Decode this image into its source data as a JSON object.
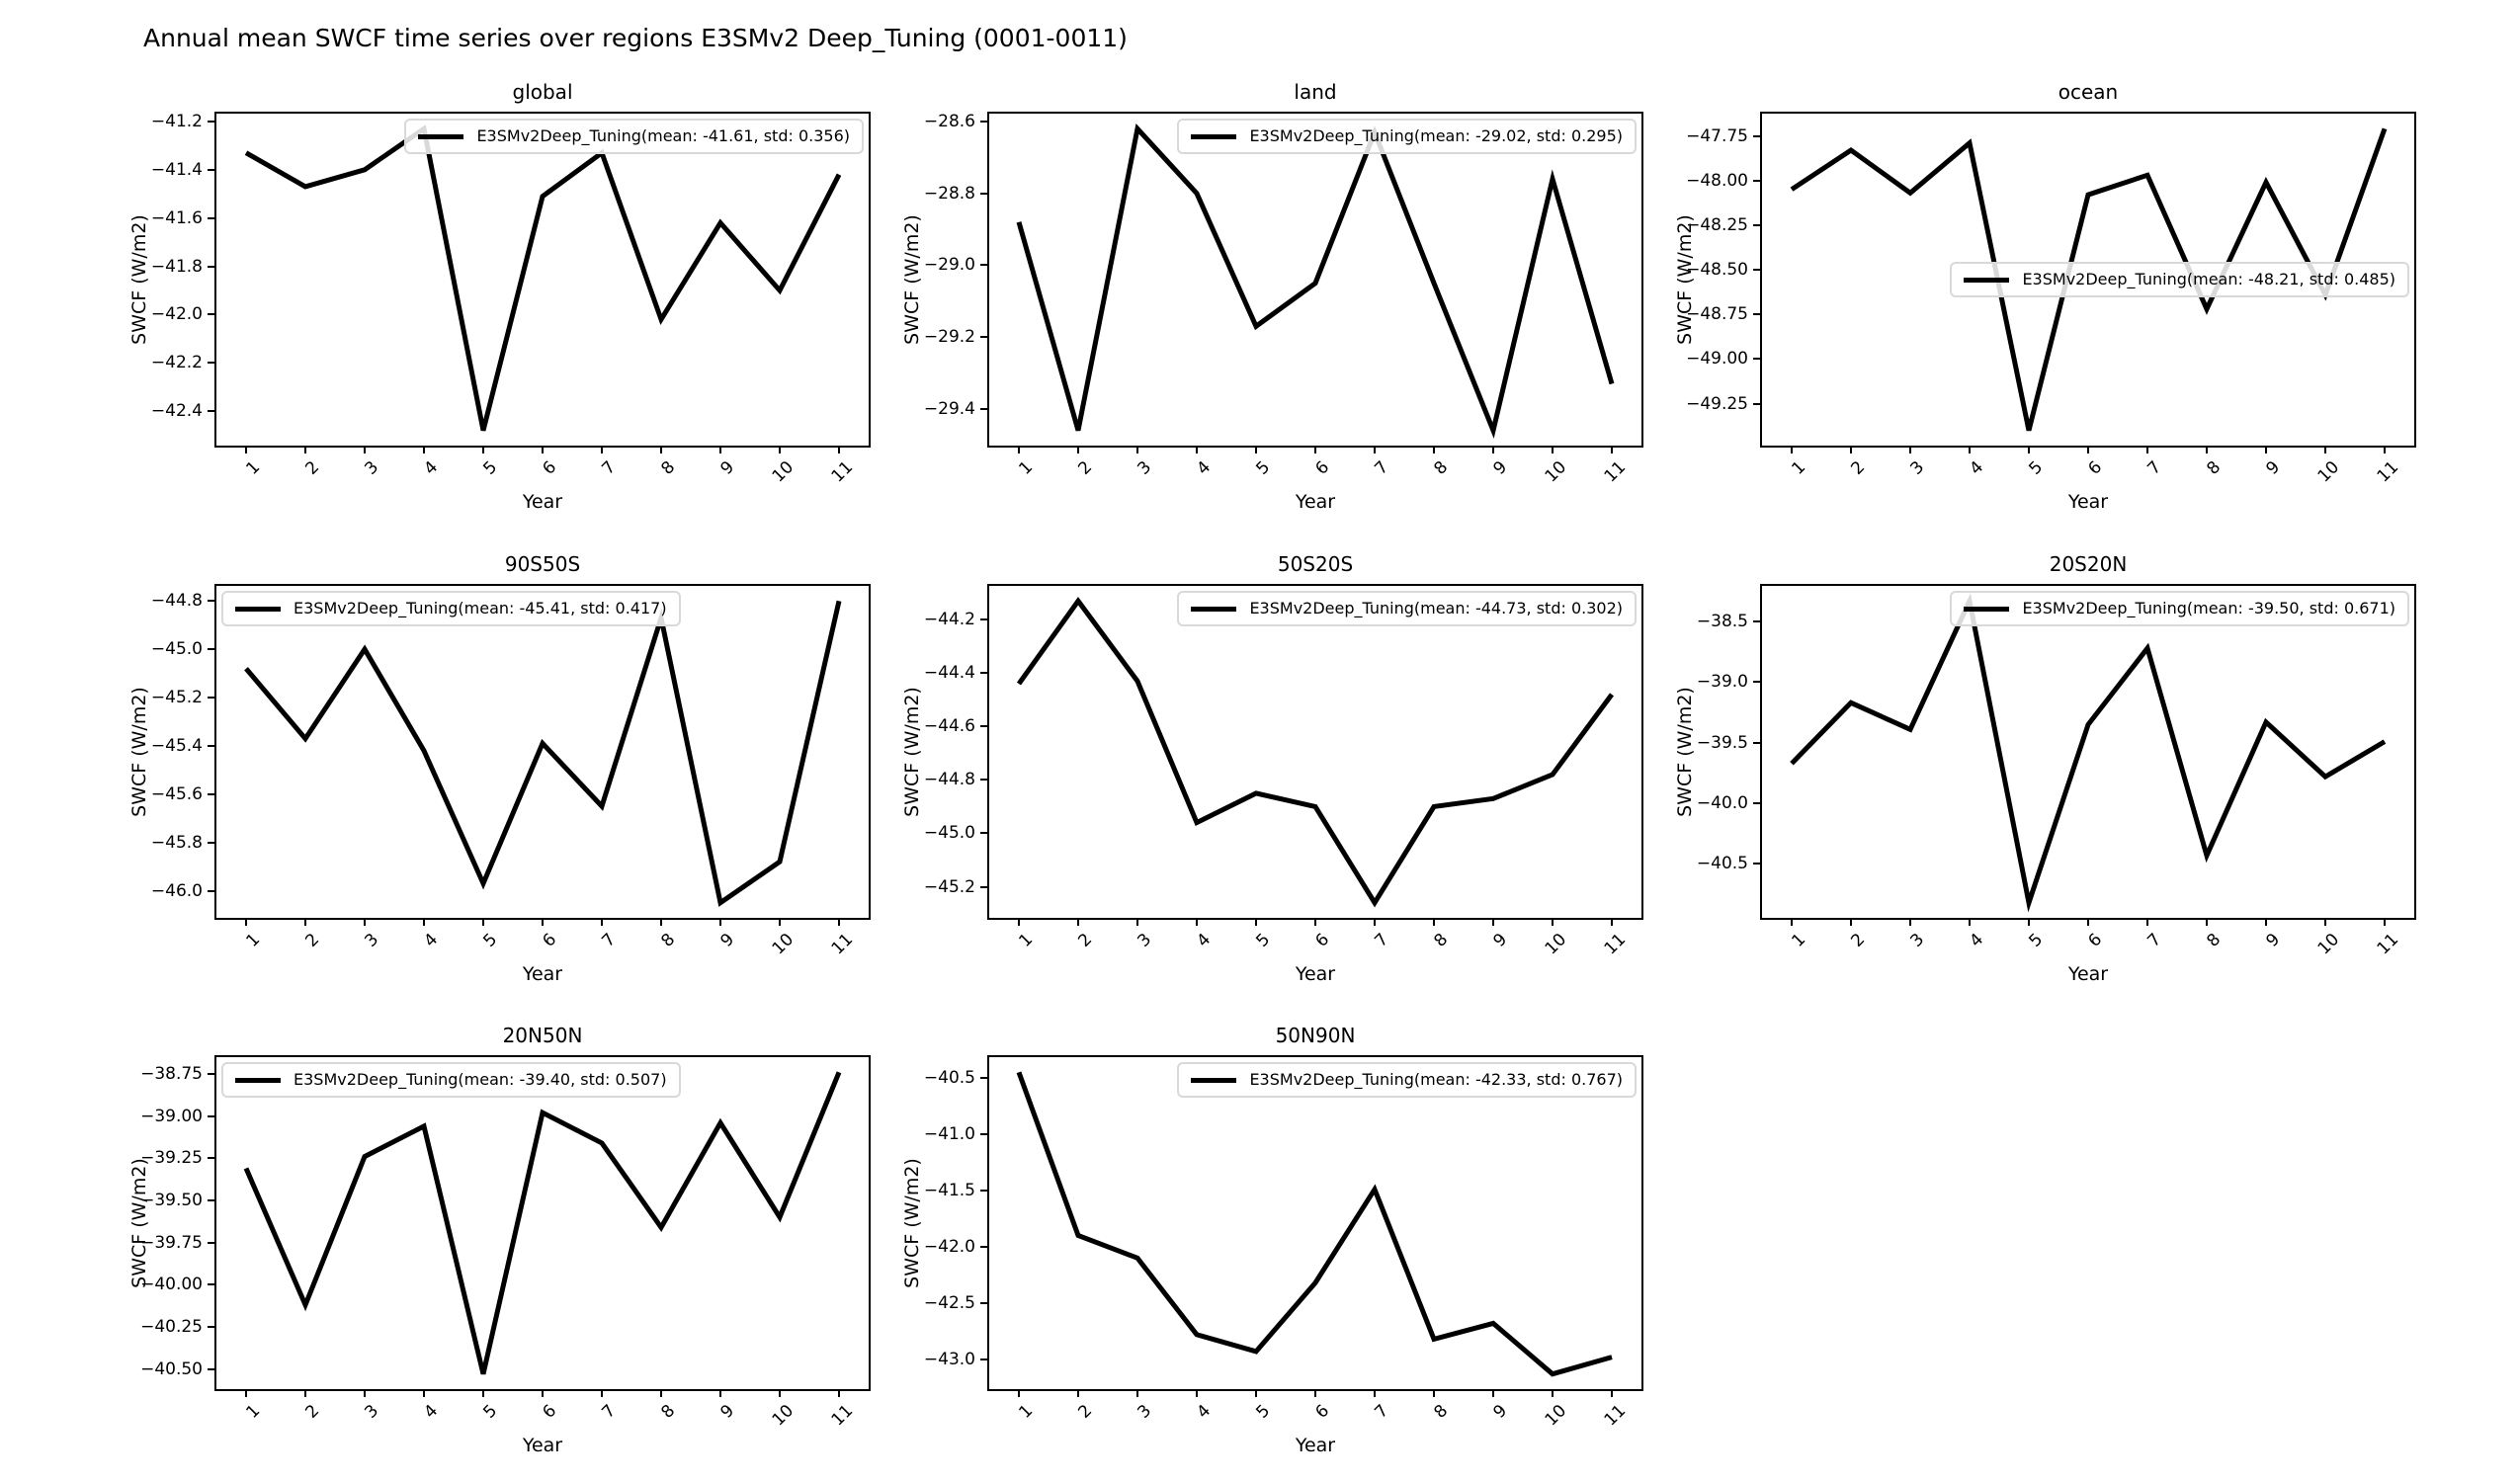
{
  "figure": {
    "title": "Annual mean SWCF time series over regions E3SMv2 Deep_Tuning (0001-0011)",
    "background_color": "#ffffff",
    "line_color": "#000000",
    "legend_border_color": "#d9d9d9"
  },
  "chart_data": [
    {
      "type": "line",
      "title": "global",
      "xlabel": "Year",
      "ylabel": "SWCF (W/m2)",
      "legend": "E3SMv2Deep_Tuning(mean: -41.61, std: 0.356)",
      "legend_pos": "top-right",
      "mean": -41.61,
      "std": 0.356,
      "x": [
        1,
        2,
        3,
        4,
        5,
        6,
        7,
        8,
        9,
        10,
        11
      ],
      "xtick_labels": [
        "1",
        "2",
        "3",
        "4",
        "5",
        "6",
        "7",
        "8",
        "9",
        "10",
        "11"
      ],
      "values": [
        -41.33,
        -41.47,
        -41.4,
        -41.23,
        -42.48,
        -41.51,
        -41.33,
        -42.02,
        -41.62,
        -41.9,
        -41.42
      ],
      "xlim": [
        0.5,
        11.5
      ],
      "ylim": [
        -42.5425,
        -41.1675
      ],
      "yticks": [
        -41.2,
        -41.4,
        -41.6,
        -41.8,
        -42.0,
        -42.2,
        -42.4
      ],
      "ytick_labels": [
        "−41.2",
        "−41.4",
        "−41.6",
        "−41.8",
        "−42.0",
        "−42.2",
        "−42.4"
      ],
      "grid": {
        "row": 0,
        "col": 0
      }
    },
    {
      "type": "line",
      "title": "land",
      "xlabel": "Year",
      "ylabel": "SWCF (W/m2)",
      "legend": "E3SMv2Deep_Tuning(mean: -29.02, std: 0.295)",
      "legend_pos": "top-right",
      "mean": -29.02,
      "std": 0.295,
      "x": [
        1,
        2,
        3,
        4,
        5,
        6,
        7,
        8,
        9,
        10,
        11
      ],
      "xtick_labels": [
        "1",
        "2",
        "3",
        "4",
        "5",
        "6",
        "7",
        "8",
        "9",
        "10",
        "11"
      ],
      "values": [
        -28.88,
        -29.46,
        -28.62,
        -28.8,
        -29.17,
        -29.05,
        -28.63,
        -29.05,
        -29.46,
        -28.76,
        -29.33
      ],
      "xlim": [
        0.5,
        11.5
      ],
      "ylim": [
        -29.502,
        -28.578
      ],
      "yticks": [
        -28.6,
        -28.8,
        -29.0,
        -29.2,
        -29.4
      ],
      "ytick_labels": [
        "−28.6",
        "−28.8",
        "−29.0",
        "−29.2",
        "−29.4"
      ],
      "grid": {
        "row": 0,
        "col": 1
      }
    },
    {
      "type": "line",
      "title": "ocean",
      "xlabel": "Year",
      "ylabel": "SWCF (W/m2)",
      "legend": "E3SMv2Deep_Tuning(mean: -48.21, std: 0.485)",
      "legend_pos": "center-right",
      "mean": -48.21,
      "std": 0.485,
      "x": [
        1,
        2,
        3,
        4,
        5,
        6,
        7,
        8,
        9,
        10,
        11
      ],
      "xtick_labels": [
        "1",
        "2",
        "3",
        "4",
        "5",
        "6",
        "7",
        "8",
        "9",
        "10",
        "11"
      ],
      "values": [
        -48.05,
        -47.83,
        -48.07,
        -47.79,
        -49.4,
        -48.08,
        -47.97,
        -48.72,
        -48.01,
        -48.64,
        -47.71
      ],
      "xlim": [
        0.5,
        11.5
      ],
      "ylim": [
        -49.4845,
        -47.6255
      ],
      "yticks": [
        -47.75,
        -48.0,
        -48.25,
        -48.5,
        -48.75,
        -49.0,
        -49.25
      ],
      "ytick_labels": [
        "−47.75",
        "−48.00",
        "−48.25",
        "−48.50",
        "−48.75",
        "−49.00",
        "−49.25"
      ],
      "grid": {
        "row": 0,
        "col": 2
      }
    },
    {
      "type": "line",
      "title": "90S50S",
      "xlabel": "Year",
      "ylabel": "SWCF (W/m2)",
      "legend": "E3SMv2Deep_Tuning(mean: -45.41, std: 0.417)",
      "legend_pos": "top-left",
      "mean": -45.41,
      "std": 0.417,
      "x": [
        1,
        2,
        3,
        4,
        5,
        6,
        7,
        8,
        9,
        10,
        11
      ],
      "xtick_labels": [
        "1",
        "2",
        "3",
        "4",
        "5",
        "6",
        "7",
        "8",
        "9",
        "10",
        "11"
      ],
      "values": [
        -45.08,
        -45.37,
        -45.0,
        -45.42,
        -45.97,
        -45.39,
        -45.65,
        -44.87,
        -46.05,
        -45.88,
        -44.8
      ],
      "xlim": [
        0.5,
        11.5
      ],
      "ylim": [
        -46.1125,
        -44.7375
      ],
      "yticks": [
        -44.8,
        -45.0,
        -45.2,
        -45.4,
        -45.6,
        -45.8,
        -46.0
      ],
      "ytick_labels": [
        "−44.8",
        "−45.0",
        "−45.2",
        "−45.4",
        "−45.6",
        "−45.8",
        "−46.0"
      ],
      "grid": {
        "row": 1,
        "col": 0
      }
    },
    {
      "type": "line",
      "title": "50S20S",
      "xlabel": "Year",
      "ylabel": "SWCF (W/m2)",
      "legend": "E3SMv2Deep_Tuning(mean: -44.73, std: 0.302)",
      "legend_pos": "top-right",
      "mean": -44.73,
      "std": 0.302,
      "x": [
        1,
        2,
        3,
        4,
        5,
        6,
        7,
        8,
        9,
        10,
        11
      ],
      "xtick_labels": [
        "1",
        "2",
        "3",
        "4",
        "5",
        "6",
        "7",
        "8",
        "9",
        "10",
        "11"
      ],
      "values": [
        -44.44,
        -44.13,
        -44.43,
        -44.96,
        -44.85,
        -44.9,
        -45.26,
        -44.9,
        -44.87,
        -44.78,
        -44.48
      ],
      "xlim": [
        0.5,
        11.5
      ],
      "ylim": [
        -45.3165,
        -44.0735
      ],
      "yticks": [
        -44.2,
        -44.4,
        -44.6,
        -44.8,
        -45.0,
        -45.2
      ],
      "ytick_labels": [
        "−44.2",
        "−44.4",
        "−44.6",
        "−44.8",
        "−45.0",
        "−45.2"
      ],
      "grid": {
        "row": 1,
        "col": 1
      }
    },
    {
      "type": "line",
      "title": "20S20N",
      "xlabel": "Year",
      "ylabel": "SWCF (W/m2)",
      "legend": "E3SMv2Deep_Tuning(mean: -39.50, std: 0.671)",
      "legend_pos": "top-right",
      "mean": -39.5,
      "std": 0.671,
      "x": [
        1,
        2,
        3,
        4,
        5,
        6,
        7,
        8,
        9,
        10,
        11
      ],
      "xtick_labels": [
        "1",
        "2",
        "3",
        "4",
        "5",
        "6",
        "7",
        "8",
        "9",
        "10",
        "11"
      ],
      "values": [
        -39.67,
        -39.17,
        -39.39,
        -38.33,
        -40.82,
        -39.35,
        -38.72,
        -40.43,
        -39.33,
        -39.78,
        -39.49
      ],
      "xlim": [
        0.5,
        11.5
      ],
      "ylim": [
        -40.9445,
        -38.2055
      ],
      "yticks": [
        -38.5,
        -39.0,
        -39.5,
        -40.0,
        -40.5
      ],
      "ytick_labels": [
        "−38.5",
        "−39.0",
        "−39.5",
        "−40.0",
        "−40.5"
      ],
      "grid": {
        "row": 1,
        "col": 2
      }
    },
    {
      "type": "line",
      "title": "20N50N",
      "xlabel": "Year",
      "ylabel": "SWCF (W/m2)",
      "legend": "E3SMv2Deep_Tuning(mean: -39.40, std: 0.507)",
      "legend_pos": "top-left",
      "mean": -39.4,
      "std": 0.507,
      "x": [
        1,
        2,
        3,
        4,
        5,
        6,
        7,
        8,
        9,
        10,
        11
      ],
      "xtick_labels": [
        "1",
        "2",
        "3",
        "4",
        "5",
        "6",
        "7",
        "8",
        "9",
        "10",
        "11"
      ],
      "values": [
        -39.31,
        -40.12,
        -39.24,
        -39.06,
        -40.53,
        -38.98,
        -39.16,
        -39.66,
        -39.04,
        -39.6,
        -38.74
      ],
      "xlim": [
        0.5,
        11.5
      ],
      "ylim": [
        -40.6195,
        -38.6505
      ],
      "yticks": [
        -38.75,
        -39.0,
        -39.25,
        -39.5,
        -39.75,
        -40.0,
        -40.25,
        -40.5
      ],
      "ytick_labels": [
        "−38.75",
        "−39.00",
        "−39.25",
        "−39.50",
        "−39.75",
        "−40.00",
        "−40.25",
        "−40.50"
      ],
      "grid": {
        "row": 2,
        "col": 0
      }
    },
    {
      "type": "line",
      "title": "50N90N",
      "xlabel": "Year",
      "ylabel": "SWCF (W/m2)",
      "legend": "E3SMv2Deep_Tuning(mean: -42.33, std: 0.767)",
      "legend_pos": "top-right",
      "mean": -42.33,
      "std": 0.767,
      "x": [
        1,
        2,
        3,
        4,
        5,
        6,
        7,
        8,
        9,
        10,
        11
      ],
      "xtick_labels": [
        "1",
        "2",
        "3",
        "4",
        "5",
        "6",
        "7",
        "8",
        "9",
        "10",
        "11"
      ],
      "values": [
        -40.45,
        -41.9,
        -42.1,
        -42.78,
        -42.93,
        -42.32,
        -41.49,
        -42.82,
        -42.68,
        -43.13,
        -42.98
      ],
      "xlim": [
        0.5,
        11.5
      ],
      "ylim": [
        -43.264,
        -40.316
      ],
      "yticks": [
        -40.5,
        -41.0,
        -41.5,
        -42.0,
        -42.5,
        -43.0
      ],
      "ytick_labels": [
        "−40.5",
        "−41.0",
        "−41.5",
        "−42.0",
        "−42.5",
        "−43.0"
      ],
      "grid": {
        "row": 2,
        "col": 1
      }
    }
  ]
}
